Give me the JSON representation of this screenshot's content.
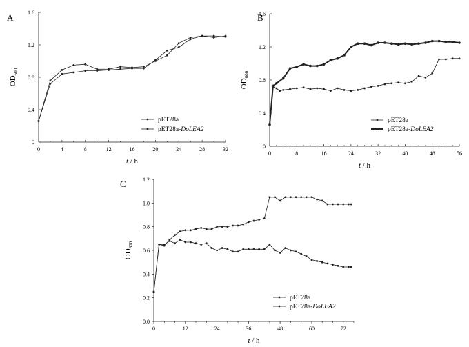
{
  "chart_data": [
    {
      "panel": "A",
      "type": "line",
      "xlabel_var": "t",
      "xlabel_unit": " / h",
      "ylabel_main": "OD",
      "ylabel_sub": "600",
      "xlim": [
        0,
        32
      ],
      "ylim": [
        0,
        1.6
      ],
      "xticks": [
        0,
        4,
        8,
        12,
        16,
        20,
        24,
        28,
        32
      ],
      "yticks": [
        0,
        0.4,
        0.8,
        1.2,
        1.6
      ],
      "tick_labels_x": [
        "0",
        "4",
        "8",
        "12",
        "16",
        "20",
        "24",
        "28",
        "32"
      ],
      "tick_labels_y": [
        "0",
        "0.4",
        "0.8",
        "1.2",
        "1.6"
      ],
      "legend_position": "bottom-right",
      "series": [
        {
          "name_plain": "pET28a",
          "name_italic": "",
          "style": "thin",
          "x": [
            0,
            2,
            4,
            6,
            8,
            10,
            12,
            14,
            16,
            18,
            20,
            22,
            24,
            26,
            28,
            30,
            32
          ],
          "y": [
            0.26,
            0.72,
            0.84,
            0.86,
            0.88,
            0.88,
            0.89,
            0.9,
            0.91,
            0.91,
            1.01,
            1.13,
            1.17,
            1.27,
            1.31,
            1.31,
            1.3
          ]
        },
        {
          "name_plain": "pET28a-",
          "name_italic": "DoLEA2",
          "style": "thin",
          "x": [
            0,
            2,
            4,
            6,
            8,
            10,
            12,
            14,
            16,
            18,
            20,
            22,
            24,
            26,
            28,
            30,
            32
          ],
          "y": [
            0.26,
            0.76,
            0.89,
            0.95,
            0.96,
            0.9,
            0.9,
            0.93,
            0.92,
            0.93,
            1.0,
            1.07,
            1.22,
            1.29,
            1.31,
            1.29,
            1.31
          ]
        }
      ]
    },
    {
      "panel": "B",
      "type": "line",
      "xlabel_var": "t",
      "xlabel_unit": " / h",
      "ylabel_main": "OD",
      "ylabel_sub": "600",
      "xlim": [
        0,
        56
      ],
      "ylim": [
        0,
        1.6
      ],
      "xticks": [
        0,
        8,
        16,
        24,
        32,
        40,
        48,
        56
      ],
      "yticks": [
        0,
        0.4,
        0.8,
        1.2,
        1.6
      ],
      "tick_labels_x": [
        "0",
        "8",
        "16",
        "24",
        "32",
        "40",
        "48",
        "56"
      ],
      "tick_labels_y": [
        "0",
        "0.4",
        "0.8",
        "1.2",
        "1.6"
      ],
      "legend_position": "bottom-right",
      "series": [
        {
          "name_plain": "pET28a",
          "name_italic": "",
          "style": "thin",
          "x": [
            0,
            1,
            2,
            3,
            4,
            6,
            8,
            10,
            12,
            14,
            16,
            18,
            20,
            22,
            24,
            26,
            28,
            30,
            32,
            34,
            36,
            38,
            40,
            42,
            44,
            46,
            48,
            50,
            52,
            54,
            56
          ],
          "y": [
            0.26,
            0.72,
            0.7,
            0.67,
            0.68,
            0.69,
            0.7,
            0.71,
            0.69,
            0.7,
            0.69,
            0.67,
            0.7,
            0.68,
            0.67,
            0.68,
            0.7,
            0.72,
            0.73,
            0.75,
            0.76,
            0.77,
            0.76,
            0.78,
            0.85,
            0.83,
            0.88,
            1.05,
            1.05,
            1.06,
            1.06
          ]
        },
        {
          "name_plain": "pET28a-",
          "name_italic": "DoLEA2",
          "style": "thick",
          "x": [
            0,
            1,
            2,
            4,
            6,
            8,
            10,
            12,
            14,
            16,
            18,
            20,
            22,
            24,
            26,
            28,
            30,
            32,
            34,
            36,
            38,
            40,
            42,
            44,
            46,
            48,
            50,
            52,
            54,
            56
          ],
          "y": [
            0.26,
            0.73,
            0.76,
            0.82,
            0.94,
            0.96,
            0.99,
            0.97,
            0.97,
            0.99,
            1.04,
            1.06,
            1.1,
            1.2,
            1.24,
            1.24,
            1.22,
            1.25,
            1.25,
            1.24,
            1.23,
            1.24,
            1.23,
            1.24,
            1.25,
            1.27,
            1.27,
            1.26,
            1.26,
            1.25
          ]
        }
      ]
    },
    {
      "panel": "C",
      "type": "line",
      "xlabel_var": "t",
      "xlabel_unit": " / h",
      "ylabel_main": "OD",
      "ylabel_sub": "600",
      "xlim": [
        0,
        76
      ],
      "ylim": [
        0,
        1.2
      ],
      "xticks": [
        0,
        12,
        24,
        36,
        48,
        60,
        72
      ],
      "yticks": [
        0,
        0.2,
        0.4,
        0.6,
        0.8,
        1.0,
        1.2
      ],
      "tick_labels_x": [
        "0",
        "12",
        "24",
        "36",
        "48",
        "60",
        "72"
      ],
      "tick_labels_y": [
        "0.0",
        "0.2",
        "0.4",
        "0.6",
        "0.8",
        "1.0",
        "1.2"
      ],
      "legend_position": "bottom-right",
      "series": [
        {
          "name_plain": "pET28a",
          "name_italic": "",
          "style": "thin",
          "x": [
            0,
            2,
            4,
            6,
            8,
            10,
            12,
            14,
            16,
            18,
            20,
            22,
            24,
            26,
            28,
            30,
            32,
            34,
            36,
            38,
            40,
            42,
            44,
            46,
            48,
            50,
            52,
            54,
            56,
            58,
            60,
            62,
            64,
            66,
            68,
            70,
            72,
            74,
            75
          ],
          "y": [
            0.25,
            0.65,
            0.65,
            0.68,
            0.66,
            0.69,
            0.67,
            0.67,
            0.66,
            0.65,
            0.66,
            0.62,
            0.6,
            0.62,
            0.61,
            0.59,
            0.59,
            0.61,
            0.61,
            0.61,
            0.61,
            0.61,
            0.65,
            0.6,
            0.58,
            0.62,
            0.6,
            0.59,
            0.57,
            0.55,
            0.52,
            0.51,
            0.5,
            0.49,
            0.48,
            0.47,
            0.46,
            0.46,
            0.46
          ]
        },
        {
          "name_plain": "pET28a-",
          "name_italic": "DoLEA2",
          "style": "thin",
          "x": [
            0,
            2,
            4,
            6,
            8,
            10,
            12,
            14,
            16,
            18,
            20,
            22,
            24,
            26,
            28,
            30,
            32,
            34,
            36,
            38,
            40,
            42,
            44,
            46,
            48,
            50,
            52,
            54,
            56,
            58,
            60,
            62,
            64,
            66,
            68,
            70,
            72,
            74,
            75
          ],
          "y": [
            0.25,
            0.65,
            0.64,
            0.69,
            0.73,
            0.76,
            0.77,
            0.77,
            0.78,
            0.79,
            0.78,
            0.78,
            0.8,
            0.8,
            0.8,
            0.81,
            0.81,
            0.82,
            0.84,
            0.85,
            0.86,
            0.87,
            1.05,
            1.05,
            1.02,
            1.05,
            1.05,
            1.05,
            1.05,
            1.05,
            1.05,
            1.03,
            1.02,
            0.99,
            0.99,
            0.99,
            0.99,
            0.99,
            0.99
          ]
        }
      ]
    }
  ]
}
